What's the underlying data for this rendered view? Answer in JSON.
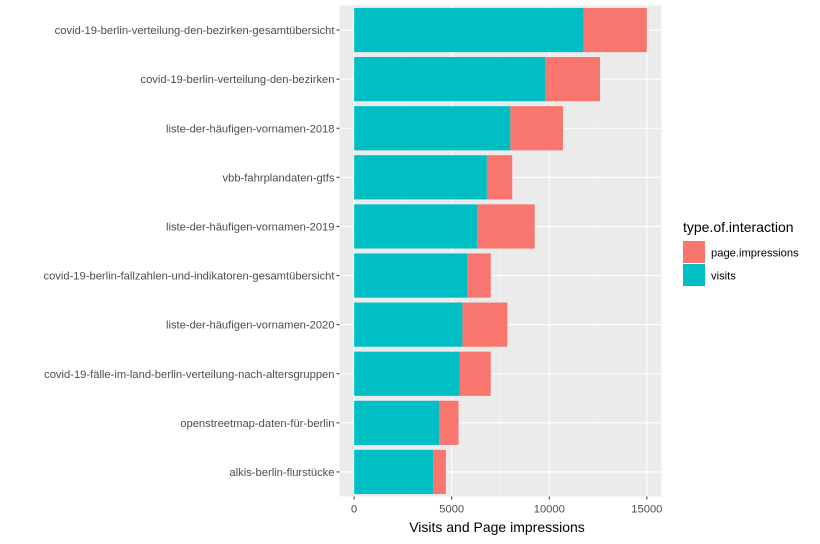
{
  "chart_data": {
    "type": "bar",
    "orientation": "horizontal",
    "stacked": true,
    "categories": [
      "covid-19-berlin-verteilung-den-bezirken-gesamtübersicht",
      "covid-19-berlin-verteilung-den-bezirken",
      "liste-der-häufigen-vornamen-2018",
      "vbb-fahrplandaten-gtfs",
      "liste-der-häufigen-vornamen-2019",
      "covid-19-berlin-fallzahlen-und-indikatoren-gesamtübersicht",
      "liste-der-häufigen-vornamen-2020",
      "covid-19-fälle-im-land-berlin-verteilung-nach-altersgruppen",
      "openstreetmap-daten-für-berlin",
      "alkis-berlin-flurstücke"
    ],
    "series": [
      {
        "name": "visits",
        "color": "#00BFC4",
        "values": [
          11750,
          9800,
          8000,
          6800,
          6300,
          5800,
          5550,
          5400,
          4350,
          4050
        ]
      },
      {
        "name": "page.impressions",
        "color": "#F8766D",
        "values": [
          3250,
          2800,
          2700,
          1300,
          2950,
          1200,
          2300,
          1600,
          1000,
          650
        ]
      }
    ],
    "xlabel": "Visits and Page impressions",
    "ylabel": "",
    "xlim": [
      -750,
      15750
    ],
    "x_ticks": [
      0,
      5000,
      10000,
      15000
    ],
    "x_tick_labels": [
      "0",
      "5000",
      "10000",
      "15000"
    ],
    "legend": {
      "title": "type.of.interaction",
      "position": "right",
      "entries": [
        {
          "label": "page.impressions",
          "color": "#F8766D"
        },
        {
          "label": "visits",
          "color": "#00BFC4"
        }
      ]
    },
    "grid": true,
    "panel_background": "#EBEBEB"
  }
}
